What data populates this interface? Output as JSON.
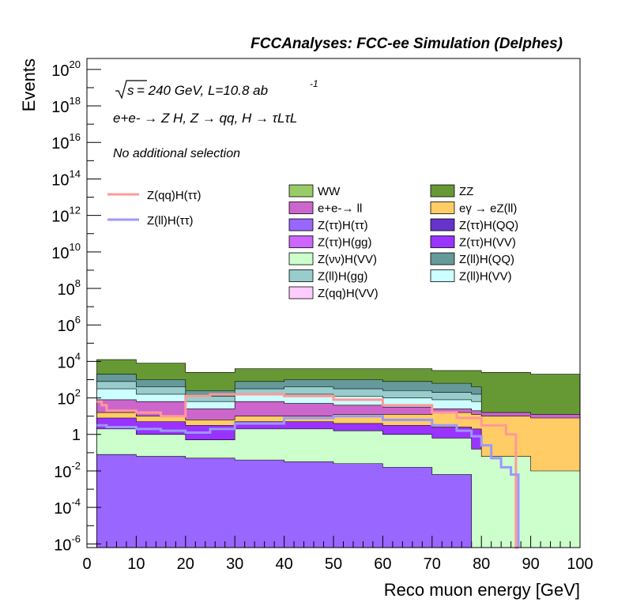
{
  "chart_data": {
    "type": "area",
    "title": "FCCAnalyses: FCC-ee Simulation (Delphes)",
    "annotations": {
      "sqrt_s": "s",
      "lumi": "= 240 GeV, L=10.8 ab",
      "lumi_exp": "-1",
      "process": "e+e- → Z H, Z → qq, H → τLτL",
      "selection": "No additional selection"
    },
    "xlabel": "Reco muon energy [GeV]",
    "ylabel": "Events",
    "xlim": [
      0,
      100
    ],
    "ylim_log10": [
      -6.2,
      20.6
    ],
    "yscale": "log",
    "x_ticks": [
      "0",
      "10",
      "20",
      "30",
      "40",
      "50",
      "60",
      "70",
      "80",
      "90",
      "100"
    ],
    "y_ticks": [
      {
        "base": "10",
        "exp": "20",
        "log": 20
      },
      {
        "base": "10",
        "exp": "18",
        "log": 18
      },
      {
        "base": "10",
        "exp": "16",
        "log": 16
      },
      {
        "base": "10",
        "exp": "14",
        "log": 14
      },
      {
        "base": "10",
        "exp": "12",
        "log": 12
      },
      {
        "base": "10",
        "exp": "10",
        "log": 10
      },
      {
        "base": "10",
        "exp": "8",
        "log": 8
      },
      {
        "base": "10",
        "exp": "6",
        "log": 6
      },
      {
        "base": "10",
        "exp": "4",
        "log": 4
      },
      {
        "base": "10",
        "exp": "2",
        "log": 2
      },
      {
        "base": "1",
        "exp": "",
        "log": 0
      },
      {
        "base": "10",
        "exp": "-2",
        "log": -2
      },
      {
        "base": "10",
        "exp": "-4",
        "log": -4
      },
      {
        "base": "10",
        "exp": "-6",
        "log": -6
      }
    ],
    "legend_placement": "upper-center",
    "signal_legend": [
      {
        "label": "Z(qq)H(ττ)",
        "color": "#ff9999"
      },
      {
        "label": "Z(ll)H(ττ)",
        "color": "#9999ff"
      }
    ],
    "background_legend": [
      {
        "label": "WW",
        "color": "#99cc66"
      },
      {
        "label": "ZZ",
        "color": "#669933"
      },
      {
        "label": "e+e-→ ll",
        "color": "#cc66cc"
      },
      {
        "label": "eγ → eZ(ll)",
        "color": "#ffcc66"
      },
      {
        "label": "Z(ττ)H(ττ)",
        "color": "#9966ff"
      },
      {
        "label": "Z(ττ)H(QQ)",
        "color": "#6633cc"
      },
      {
        "label": "Z(ττ)H(gg)",
        "color": "#cc66ff"
      },
      {
        "label": "Z(ττ)H(VV)",
        "color": "#9933ff"
      },
      {
        "label": "Z(νν)H(VV)",
        "color": "#ccffcc"
      },
      {
        "label": "Z(ll)H(QQ)",
        "color": "#669999"
      },
      {
        "label": "Z(ll)H(gg)",
        "color": "#99cccc"
      },
      {
        "label": "Z(ll)H(VV)",
        "color": "#ccffff"
      },
      {
        "label": "Z(qq)H(VV)",
        "color": "#ffccff"
      }
    ],
    "stack_bands": [
      {
        "name": "ZZ",
        "color": "#669933",
        "x": [
          0,
          2,
          10,
          20,
          30,
          40,
          50,
          60,
          70,
          78,
          80,
          90,
          100
        ],
        "log_top": [
          -6.2,
          4.1,
          3.9,
          3.4,
          3.6,
          3.6,
          3.6,
          3.6,
          3.5,
          3.5,
          3.4,
          3.3,
          3.2
        ]
      },
      {
        "name": "Z(ll)H(QQ)",
        "color": "#669999",
        "x": [
          0,
          2,
          10,
          20,
          30,
          40,
          50,
          60,
          70,
          78,
          80,
          90,
          100
        ],
        "log_top": [
          -6.2,
          3.3,
          3.0,
          2.4,
          2.9,
          3.0,
          3.0,
          2.9,
          2.8,
          2.6,
          -6.2,
          -6.2,
          -6.2
        ]
      },
      {
        "name": "Z(ll)H(gg)",
        "color": "#99cccc",
        "x": [
          0,
          2,
          10,
          20,
          30,
          40,
          50,
          60,
          70,
          78,
          80,
          90,
          100
        ],
        "log_top": [
          -6.2,
          2.9,
          2.6,
          2.1,
          2.5,
          2.6,
          2.5,
          2.4,
          2.3,
          2.2,
          -6.2,
          -6.2,
          -6.2
        ]
      },
      {
        "name": "Z(ll)H(VV)",
        "color": "#ccffff",
        "x": [
          0,
          2,
          10,
          20,
          30,
          40,
          50,
          60,
          70,
          78,
          80,
          90,
          100
        ],
        "log_top": [
          -6.2,
          2.5,
          2.2,
          1.8,
          2.2,
          2.2,
          2.1,
          2.0,
          1.9,
          1.8,
          -6.2,
          -6.2,
          -6.2
        ]
      },
      {
        "name": "e+e-→ ll",
        "color": "#cc66cc",
        "x": [
          0,
          2,
          10,
          20,
          30,
          40,
          50,
          60,
          70,
          78,
          80,
          90,
          100
        ],
        "log_top": [
          -6.2,
          1.9,
          1.8,
          1.4,
          1.8,
          1.7,
          1.6,
          1.5,
          1.4,
          1.3,
          1.2,
          1.1,
          1.1
        ]
      },
      {
        "name": "eγ → eZ(ll)",
        "color": "#ffcc66",
        "x": [
          0,
          2,
          10,
          20,
          30,
          40,
          50,
          60,
          70,
          78,
          80,
          90,
          100
        ],
        "log_top": [
          -6.2,
          1.2,
          1.0,
          0.8,
          1.0,
          1.0,
          1.1,
          1.1,
          1.2,
          1.1,
          1.0,
          0.9,
          0.8
        ]
      },
      {
        "name": "Z(ττ)H(VV)",
        "color": "#9933ff",
        "x": [
          0,
          2,
          10,
          20,
          30,
          40,
          50,
          60,
          70,
          78,
          80,
          90,
          100
        ],
        "log_top": [
          -6.2,
          0.9,
          0.7,
          0.5,
          0.7,
          0.7,
          0.6,
          0.5,
          0.4,
          0.3,
          -6.2,
          -6.2,
          -6.2
        ]
      },
      {
        "name": "Z(νν)H(VV)",
        "color": "#ccffcc",
        "x": [
          0,
          2,
          10,
          20,
          30,
          40,
          50,
          60,
          70,
          78,
          80,
          90,
          100
        ],
        "log_top": [
          -6.2,
          0.3,
          0.0,
          -0.3,
          0.3,
          0.3,
          0.2,
          0.0,
          -0.2,
          -0.8,
          -1.2,
          -2.0,
          -2.0
        ]
      },
      {
        "name": "Z(ττ)H(ττ)",
        "color": "#9966ff",
        "x": [
          0,
          2,
          10,
          20,
          30,
          40,
          50,
          60,
          70,
          78,
          80,
          90,
          100
        ],
        "log_top": [
          -6.2,
          -1.1,
          -1.2,
          -1.3,
          -1.4,
          -1.5,
          -1.6,
          -1.8,
          -2.2,
          -6.2,
          -6.2,
          -6.2,
          -6.2
        ]
      }
    ],
    "series": [
      {
        "name": "Z(qq)H(ττ)",
        "color": "#ff9999",
        "x": [
          2,
          3,
          4,
          10,
          15,
          20,
          25,
          30,
          40,
          50,
          60,
          70,
          75,
          80,
          85,
          87,
          87.5
        ],
        "log_y": [
          1.8,
          1.6,
          1.3,
          1.2,
          1.0,
          2.1,
          2.2,
          2.2,
          2.1,
          1.9,
          1.6,
          1.2,
          0.9,
          0.5,
          0.0,
          -6.2,
          -6.2
        ]
      },
      {
        "name": "Z(ll)H(ττ)",
        "color": "#9999ff",
        "x": [
          2,
          3,
          4,
          10,
          15,
          20,
          25,
          30,
          40,
          50,
          60,
          70,
          75,
          78,
          80,
          82,
          84,
          86,
          87.5
        ],
        "log_y": [
          0.5,
          0.5,
          0.4,
          0.3,
          0.2,
          0.1,
          0.3,
          0.6,
          0.9,
          1.0,
          0.8,
          0.5,
          0.2,
          -0.1,
          -0.6,
          -1.3,
          -1.8,
          -2.2,
          -6.2
        ]
      }
    ]
  }
}
